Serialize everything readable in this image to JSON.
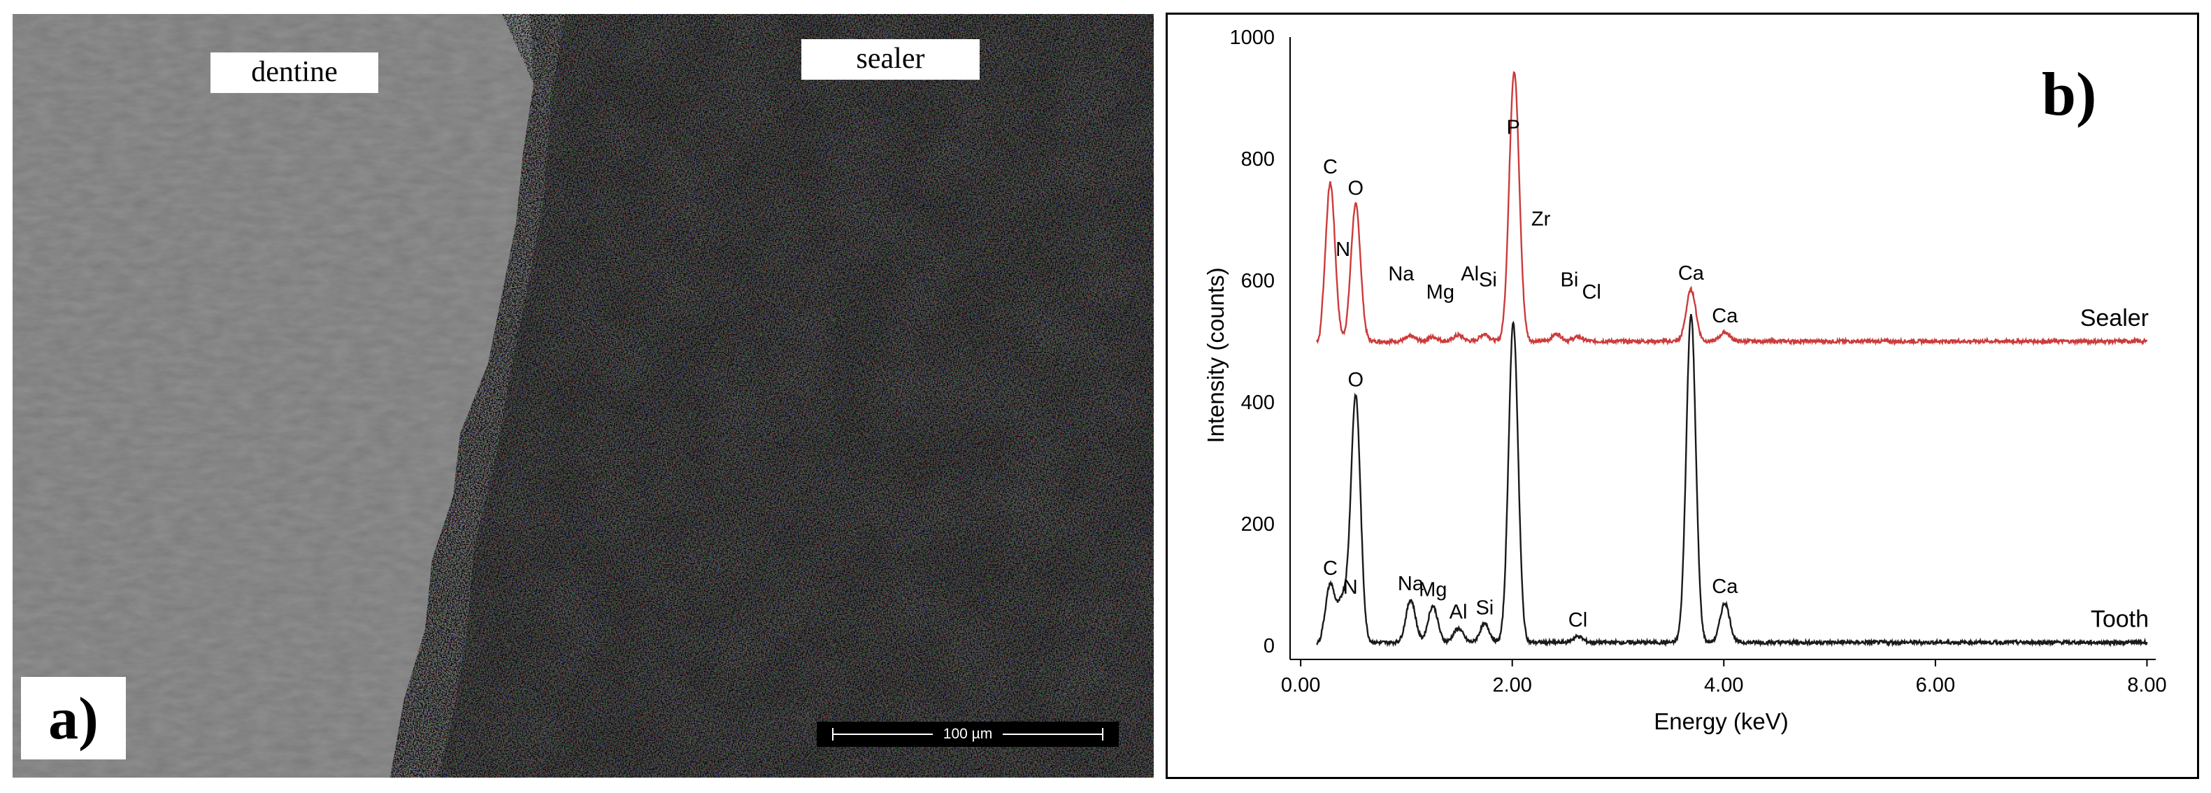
{
  "panel_a": {
    "label": "a)",
    "region_labels": {
      "dentine": "dentine",
      "sealer": "sealer"
    },
    "scale_bar": "100 µm"
  },
  "panel_b": {
    "label": "b)"
  },
  "chart_data": {
    "type": "line",
    "xlabel": "Energy (keV)",
    "ylabel": "Intensity (counts)",
    "xlim": [
      -0.1,
      8.05
    ],
    "ylim": [
      0,
      1000
    ],
    "x_ticks": [
      0,
      2,
      4,
      6,
      8
    ],
    "x_tick_labels": [
      "0.00",
      "2.00",
      "4.00",
      "6.00",
      "8.00"
    ],
    "y_ticks": [
      0,
      200,
      400,
      600,
      800,
      1000
    ],
    "y_tick_labels": [
      "0",
      "200",
      "400",
      "600",
      "800",
      "1000"
    ],
    "grid": false,
    "legend": "none",
    "series": [
      {
        "name": "Sealer",
        "color": "#cc3b3b",
        "baseline": 500,
        "peaks": [
          {
            "x": 0.28,
            "y": 760,
            "label": "C"
          },
          {
            "x": 0.52,
            "y": 725,
            "label": "O"
          },
          {
            "x": 1.04,
            "y": 508,
            "label": ""
          },
          {
            "x": 1.25,
            "y": 507,
            "label": ""
          },
          {
            "x": 1.49,
            "y": 510,
            "label": ""
          },
          {
            "x": 1.74,
            "y": 512,
            "label": ""
          },
          {
            "x": 2.01,
            "y": 825,
            "label": "P"
          },
          {
            "x": 2.04,
            "y": 640,
            "label": ""
          },
          {
            "x": 2.42,
            "y": 512,
            "label": ""
          },
          {
            "x": 2.62,
            "y": 507,
            "label": ""
          },
          {
            "x": 3.69,
            "y": 585,
            "label": "Ca"
          },
          {
            "x": 4.01,
            "y": 515,
            "label": "Ca"
          }
        ],
        "annotations": [
          {
            "text": "N",
            "x": 0.4,
            "y": 640
          },
          {
            "text": "Na",
            "x": 0.95,
            "y": 600
          },
          {
            "text": "Mg",
            "x": 1.32,
            "y": 570
          },
          {
            "text": "Al",
            "x": 1.6,
            "y": 600
          },
          {
            "text": "Si",
            "x": 1.77,
            "y": 590
          },
          {
            "text": "Zr",
            "x": 2.27,
            "y": 690
          },
          {
            "text": "Bi",
            "x": 2.54,
            "y": 590
          },
          {
            "text": "Cl",
            "x": 2.75,
            "y": 570
          }
        ]
      },
      {
        "name": "Tooth",
        "color": "#1a1a1a",
        "baseline": 5,
        "peaks": [
          {
            "x": 0.28,
            "y": 100,
            "label": "C"
          },
          {
            "x": 0.4,
            "y": 75,
            "label": ""
          },
          {
            "x": 0.52,
            "y": 410,
            "label": "O"
          },
          {
            "x": 1.04,
            "y": 75,
            "label": "Na"
          },
          {
            "x": 1.25,
            "y": 65,
            "label": "Mg"
          },
          {
            "x": 1.49,
            "y": 28,
            "label": "Al"
          },
          {
            "x": 1.74,
            "y": 35,
            "label": "Si"
          },
          {
            "x": 2.01,
            "y": 530,
            "label": ""
          },
          {
            "x": 2.62,
            "y": 15,
            "label": "Cl"
          },
          {
            "x": 3.69,
            "y": 545,
            "label": ""
          },
          {
            "x": 4.01,
            "y": 70,
            "label": "Ca"
          }
        ],
        "annotations": [
          {
            "text": "N",
            "x": 0.47,
            "y": 85
          }
        ]
      }
    ]
  }
}
